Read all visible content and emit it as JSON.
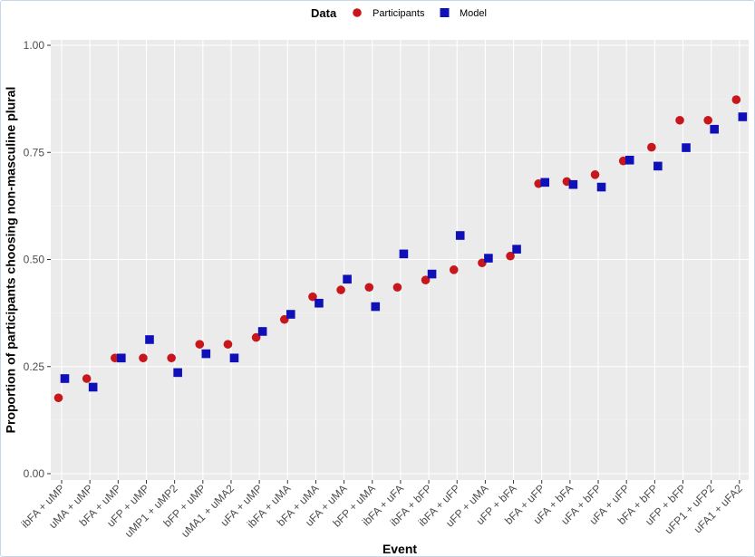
{
  "chart_data": {
    "type": "scatter",
    "title": "",
    "xlabel": "Event",
    "ylabel": "Proportion of participants choosing non-masculine plural",
    "ylim": [
      0,
      1
    ],
    "yticks": [
      "0.00",
      "0.25",
      "0.50",
      "0.75",
      "1.00"
    ],
    "grid": true,
    "legend": {
      "title": "Data",
      "position": "top"
    },
    "categories": [
      "ibFA + uMP",
      "uMA + uMP",
      "bFA + uMP",
      "uFP + uMP",
      "uMP1 + uMP2",
      "bFP + uMP",
      "uMA1 + uMA2",
      "uFA + uMP",
      "ibFA + uMA",
      "bFA + uMA",
      "uFA + uMA",
      "bFP + uMA",
      "ibFA + uFA",
      "ibFA + bFP",
      "ibFA + uFP",
      "uFP + uMA",
      "uFP + bFA",
      "bFA + uFP",
      "uFA + bFA",
      "uFA + bFP",
      "uFA + uFP",
      "bFA + bFP",
      "uFP + bFP",
      "uFP1 + uFP2",
      "uFA1 + uFA2"
    ],
    "series": [
      {
        "name": "Participants",
        "shape": "circle",
        "color": "#c8171c",
        "values": [
          0.177,
          0.222,
          0.27,
          0.27,
          0.27,
          0.302,
          0.302,
          0.318,
          0.36,
          0.413,
          0.429,
          0.435,
          0.435,
          0.452,
          0.476,
          0.492,
          0.508,
          0.677,
          0.682,
          0.698,
          0.73,
          0.762,
          0.825,
          0.825,
          0.873
        ]
      },
      {
        "name": "Model",
        "shape": "square",
        "color": "#1010b8",
        "values": [
          0.222,
          0.202,
          0.27,
          0.313,
          0.236,
          0.28,
          0.27,
          0.332,
          0.372,
          0.398,
          0.454,
          0.39,
          0.513,
          0.466,
          0.556,
          0.503,
          0.524,
          0.68,
          0.675,
          0.669,
          0.732,
          0.718,
          0.761,
          0.804,
          0.833
        ]
      }
    ]
  }
}
